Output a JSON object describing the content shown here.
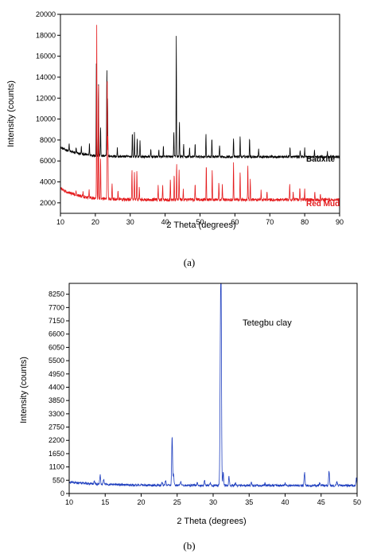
{
  "chart_data": [
    {
      "type": "line",
      "caption": "(a)",
      "xlabel": "2 Theta (degrees)",
      "ylabel": "Intensity (counts)",
      "xlim": [
        10,
        90
      ],
      "ylim": [
        1000,
        20000
      ],
      "xticks": [
        10,
        20,
        30,
        40,
        50,
        60,
        70,
        80,
        90
      ],
      "yticks": [
        2000,
        4000,
        6000,
        8000,
        10000,
        12000,
        14000,
        16000,
        18000,
        20000
      ],
      "grid": false,
      "series": [
        {
          "name": "Bauxite",
          "color": "#000000",
          "baseline": 6400,
          "start_level": 7300,
          "noise": 120,
          "peaks": [
            [
              12.5,
              700
            ],
            [
              14.5,
              500
            ],
            [
              16.0,
              700
            ],
            [
              18.3,
              1100
            ],
            [
              20.3,
              9000
            ],
            [
              20.9,
              7000
            ],
            [
              21.5,
              2800
            ],
            [
              23.3,
              8500
            ],
            [
              23.5,
              5500
            ],
            [
              26.3,
              800
            ],
            [
              30.6,
              2300
            ],
            [
              31.2,
              2300
            ],
            [
              32.0,
              1800
            ],
            [
              32.8,
              1500
            ],
            [
              35.9,
              700
            ],
            [
              38.2,
              700
            ],
            [
              39.5,
              1000
            ],
            [
              42.5,
              2500
            ],
            [
              43.2,
              11500
            ],
            [
              44.1,
              3500
            ],
            [
              45.3,
              1200
            ],
            [
              47.0,
              900
            ],
            [
              48.6,
              1200
            ],
            [
              51.7,
              2300
            ],
            [
              53.4,
              1900
            ],
            [
              55.6,
              1100
            ],
            [
              59.6,
              1800
            ],
            [
              61.5,
              2000
            ],
            [
              64.2,
              1900
            ],
            [
              66.8,
              800
            ],
            [
              75.8,
              900
            ],
            [
              78.7,
              700
            ],
            [
              80.0,
              800
            ],
            [
              82.8,
              600
            ],
            [
              86.5,
              500
            ]
          ]
        },
        {
          "name": "Red Mud",
          "color": "#e41a1c",
          "baseline": 2300,
          "start_level": 3400,
          "noise": 150,
          "peaks": [
            [
              14.5,
              400
            ],
            [
              16.5,
              500
            ],
            [
              18.2,
              700
            ],
            [
              20.4,
              16500
            ],
            [
              20.9,
              11000
            ],
            [
              21.5,
              4000
            ],
            [
              23.4,
              12500
            ],
            [
              23.6,
              6000
            ],
            [
              24.8,
              1500
            ],
            [
              26.5,
              800
            ],
            [
              30.5,
              3000
            ],
            [
              31.2,
              2500
            ],
            [
              31.9,
              2900
            ],
            [
              32.6,
              1200
            ],
            [
              38.0,
              1400
            ],
            [
              39.3,
              1500
            ],
            [
              41.5,
              2100
            ],
            [
              42.6,
              2400
            ],
            [
              43.3,
              3500
            ],
            [
              44.0,
              3000
            ],
            [
              45.2,
              1100
            ],
            [
              48.6,
              1600
            ],
            [
              51.8,
              3500
            ],
            [
              53.5,
              2800
            ],
            [
              55.4,
              1700
            ],
            [
              56.4,
              1400
            ],
            [
              59.6,
              3600
            ],
            [
              61.5,
              2800
            ],
            [
              63.7,
              3300
            ],
            [
              64.4,
              2000
            ],
            [
              67.5,
              900
            ],
            [
              69.2,
              700
            ],
            [
              75.7,
              1500
            ],
            [
              76.7,
              800
            ],
            [
              78.6,
              1200
            ],
            [
              80.0,
              1000
            ],
            [
              82.9,
              800
            ],
            [
              84.5,
              600
            ]
          ]
        }
      ]
    },
    {
      "type": "line",
      "caption": "(b)",
      "xlabel": "2 Theta (degrees)",
      "ylabel": "Intensity (counts)",
      "xlim": [
        10,
        50
      ],
      "ylim": [
        0,
        8700
      ],
      "xticks": [
        10,
        15,
        20,
        25,
        30,
        35,
        40,
        45,
        50
      ],
      "yticks": [
        0,
        550,
        1100,
        1650,
        2200,
        2750,
        3300,
        3850,
        4400,
        4950,
        5500,
        6050,
        6600,
        7150,
        7700,
        8250
      ],
      "grid": false,
      "series": [
        {
          "name": "Tetegbu clay",
          "color": "#1f3fbf",
          "baseline": 330,
          "start_level": 470,
          "noise": 45,
          "peaks": [
            [
              13.5,
              120
            ],
            [
              14.3,
              380
            ],
            [
              14.8,
              200
            ],
            [
              22.9,
              120
            ],
            [
              23.4,
              180
            ],
            [
              24.3,
              2050
            ],
            [
              24.5,
              450
            ],
            [
              25.5,
              150
            ],
            [
              27.8,
              120
            ],
            [
              28.8,
              200
            ],
            [
              29.6,
              120
            ],
            [
              31.0,
              4350
            ],
            [
              31.1,
              8250
            ],
            [
              31.4,
              550
            ],
            [
              32.2,
              350
            ],
            [
              33.1,
              120
            ],
            [
              35.3,
              150
            ],
            [
              37.2,
              90
            ],
            [
              40.0,
              90
            ],
            [
              42.7,
              550
            ],
            [
              44.8,
              130
            ],
            [
              46.1,
              600
            ],
            [
              47.2,
              150
            ],
            [
              49.9,
              300
            ]
          ]
        }
      ]
    }
  ]
}
